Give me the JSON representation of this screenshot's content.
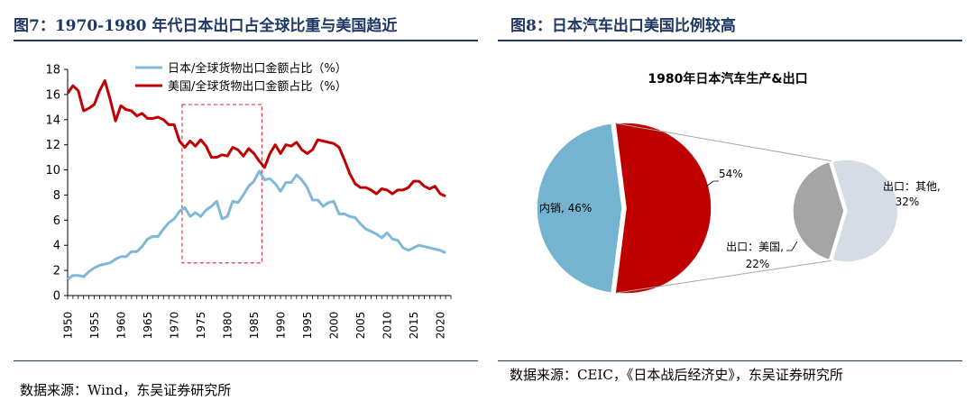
{
  "left": {
    "title": "图7：1970-1980 年代日本出口占全球比重与美国趋近",
    "source": "数据来源：Wind，东吴证券研究所"
  },
  "right": {
    "title": "图8：日本汽车出口美国比例较高",
    "source": "数据来源：CEIC，《日本战后经济史》，东吴证券研究所"
  },
  "chart_data": [
    {
      "type": "line",
      "title": "",
      "xlabel": "",
      "ylabel": "",
      "xlim": [
        1950,
        2022
      ],
      "ylim": [
        0,
        18
      ],
      "yticks": [
        0,
        2,
        4,
        6,
        8,
        10,
        12,
        14,
        16,
        18
      ],
      "xticks": [
        1950,
        1955,
        1960,
        1965,
        1970,
        1975,
        1980,
        1985,
        1990,
        1995,
        2000,
        2005,
        2010,
        2015,
        2020
      ],
      "legend_position": "top",
      "highlight_box": {
        "x": [
          1971.5,
          1986.5
        ],
        "y": [
          2.6,
          15.2
        ],
        "color": "#e8363a"
      },
      "series": [
        {
          "name": "日本/全球货物出口金额占比（%）",
          "color": "#7fb8d8",
          "points": [
            [
              1950,
              1.3
            ],
            [
              1951,
              1.6
            ],
            [
              1952,
              1.6
            ],
            [
              1953,
              1.5
            ],
            [
              1954,
              1.9
            ],
            [
              1955,
              2.2
            ],
            [
              1956,
              2.4
            ],
            [
              1957,
              2.5
            ],
            [
              1958,
              2.6
            ],
            [
              1959,
              2.9
            ],
            [
              1960,
              3.1
            ],
            [
              1961,
              3.1
            ],
            [
              1962,
              3.5
            ],
            [
              1963,
              3.5
            ],
            [
              1964,
              3.9
            ],
            [
              1965,
              4.5
            ],
            [
              1966,
              4.7
            ],
            [
              1967,
              4.7
            ],
            [
              1968,
              5.3
            ],
            [
              1969,
              5.8
            ],
            [
              1970,
              6.1
            ],
            [
              1971,
              6.7
            ],
            [
              1972,
              7.0
            ],
            [
              1973,
              6.3
            ],
            [
              1974,
              6.6
            ],
            [
              1975,
              6.3
            ],
            [
              1976,
              6.8
            ],
            [
              1977,
              7.1
            ],
            [
              1978,
              7.5
            ],
            [
              1979,
              6.1
            ],
            [
              1980,
              6.3
            ],
            [
              1981,
              7.5
            ],
            [
              1982,
              7.4
            ],
            [
              1983,
              8.0
            ],
            [
              1984,
              8.7
            ],
            [
              1985,
              9.1
            ],
            [
              1986,
              9.9
            ],
            [
              1987,
              9.2
            ],
            [
              1988,
              9.3
            ],
            [
              1989,
              8.9
            ],
            [
              1990,
              8.3
            ],
            [
              1991,
              9.0
            ],
            [
              1992,
              9.0
            ],
            [
              1993,
              9.6
            ],
            [
              1994,
              9.2
            ],
            [
              1995,
              8.6
            ],
            [
              1996,
              7.6
            ],
            [
              1997,
              7.6
            ],
            [
              1998,
              7.1
            ],
            [
              1999,
              7.4
            ],
            [
              2000,
              7.5
            ],
            [
              2001,
              6.5
            ],
            [
              2002,
              6.5
            ],
            [
              2003,
              6.3
            ],
            [
              2004,
              6.2
            ],
            [
              2005,
              5.7
            ],
            [
              2006,
              5.3
            ],
            [
              2007,
              5.1
            ],
            [
              2008,
              4.9
            ],
            [
              2009,
              4.6
            ],
            [
              2010,
              5.0
            ],
            [
              2011,
              4.5
            ],
            [
              2012,
              4.4
            ],
            [
              2013,
              3.8
            ],
            [
              2014,
              3.6
            ],
            [
              2015,
              3.8
            ],
            [
              2016,
              4.0
            ],
            [
              2017,
              3.9
            ],
            [
              2018,
              3.8
            ],
            [
              2019,
              3.7
            ],
            [
              2020,
              3.6
            ],
            [
              2021,
              3.4
            ]
          ]
        },
        {
          "name": "美国/全球货物出口金额占比（%）",
          "color": "#c00000",
          "points": [
            [
              1950,
              16.1
            ],
            [
              1951,
              16.7
            ],
            [
              1952,
              16.3
            ],
            [
              1953,
              14.7
            ],
            [
              1954,
              14.9
            ],
            [
              1955,
              15.2
            ],
            [
              1956,
              16.3
            ],
            [
              1957,
              17.1
            ],
            [
              1958,
              15.6
            ],
            [
              1959,
              13.9
            ],
            [
              1960,
              15.1
            ],
            [
              1961,
              14.8
            ],
            [
              1962,
              14.7
            ],
            [
              1963,
              14.3
            ],
            [
              1964,
              14.5
            ],
            [
              1965,
              14.1
            ],
            [
              1966,
              14.1
            ],
            [
              1967,
              14.2
            ],
            [
              1968,
              14.0
            ],
            [
              1969,
              13.6
            ],
            [
              1970,
              13.6
            ],
            [
              1971,
              12.3
            ],
            [
              1972,
              11.8
            ],
            [
              1973,
              12.3
            ],
            [
              1974,
              11.9
            ],
            [
              1975,
              12.4
            ],
            [
              1976,
              11.9
            ],
            [
              1977,
              11.0
            ],
            [
              1978,
              11.0
            ],
            [
              1979,
              11.2
            ],
            [
              1980,
              11.1
            ],
            [
              1981,
              11.8
            ],
            [
              1982,
              11.6
            ],
            [
              1983,
              11.1
            ],
            [
              1984,
              11.7
            ],
            [
              1985,
              11.3
            ],
            [
              1986,
              10.7
            ],
            [
              1987,
              10.2
            ],
            [
              1988,
              11.3
            ],
            [
              1989,
              12.0
            ],
            [
              1990,
              11.3
            ],
            [
              1991,
              12.0
            ],
            [
              1992,
              11.9
            ],
            [
              1993,
              12.2
            ],
            [
              1994,
              11.6
            ],
            [
              1995,
              11.3
            ],
            [
              1996,
              11.6
            ],
            [
              1997,
              12.4
            ],
            [
              1998,
              12.3
            ],
            [
              1999,
              12.2
            ],
            [
              2000,
              12.1
            ],
            [
              2001,
              11.8
            ],
            [
              2002,
              10.8
            ],
            [
              2003,
              9.7
            ],
            [
              2004,
              8.9
            ],
            [
              2005,
              8.6
            ],
            [
              2006,
              8.6
            ],
            [
              2007,
              8.4
            ],
            [
              2008,
              8.1
            ],
            [
              2009,
              8.5
            ],
            [
              2010,
              8.4
            ],
            [
              2011,
              8.1
            ],
            [
              2012,
              8.4
            ],
            [
              2013,
              8.4
            ],
            [
              2014,
              8.6
            ],
            [
              2015,
              9.1
            ],
            [
              2016,
              9.1
            ],
            [
              2017,
              8.7
            ],
            [
              2018,
              8.5
            ],
            [
              2019,
              8.7
            ],
            [
              2020,
              8.1
            ],
            [
              2021,
              7.9
            ]
          ]
        }
      ]
    },
    {
      "type": "pie",
      "title": "1980年日本汽车生产&出口",
      "slices": [
        {
          "label": "内销",
          "value": 46,
          "color": "#74b4d0"
        },
        {
          "label": "",
          "value": 54,
          "color": "#c00000"
        }
      ],
      "breakdown": {
        "of": 54,
        "slices": [
          {
            "label": "出口：其他",
            "value": 32,
            "color": "#d6dce6"
          },
          {
            "label": "出口：美国",
            "value": 22,
            "color": "#a5a5a5"
          }
        ]
      }
    }
  ]
}
